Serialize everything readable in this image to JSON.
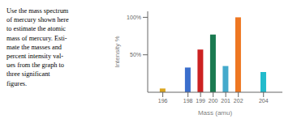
{
  "chart_data": {
    "type": "bar",
    "x": [
      196,
      198,
      199,
      200,
      201,
      202,
      204
    ],
    "values": [
      5.0,
      33.0,
      57.0,
      77.0,
      35.0,
      100.0,
      27.0
    ],
    "colors": [
      "#DAA520",
      "#3B6FCC",
      "#CC2222",
      "#1A7A50",
      "#44AACC",
      "#EE7722",
      "#22BBCC"
    ],
    "xlim": [
      194.8,
      205.5
    ],
    "xticks": [
      196,
      198,
      199,
      200,
      201,
      202,
      204
    ],
    "ylim": [
      0,
      108
    ],
    "yticks": [
      {
        "value": 50,
        "label": "50%"
      },
      {
        "value": 100,
        "label": "100%"
      }
    ],
    "xlabel": "Mass (amu)",
    "ylabel": "Intensity %",
    "annotation": "Use the mass spectrum\nof mercury shown here\nto estimate the atomic\nmass of mercury. Esti-\nmate the masses and\npercent intensity val-\nues from the graph to\nthree significant\nfigures."
  }
}
